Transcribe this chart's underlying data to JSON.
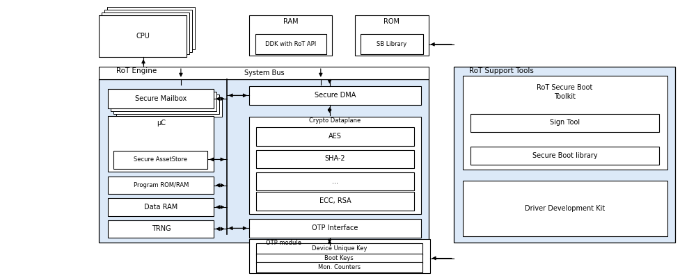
{
  "fig_width": 10.0,
  "fig_height": 4.0,
  "dpi": 100,
  "bg_color": "#ffffff",
  "light_blue": "#dce9f8",
  "box_face": "#ffffff",
  "box_edge": "#000000",
  "fs": 7.0,
  "fs_small": 6.0,
  "fs_label": 7.5,
  "xlim": [
    0,
    10
  ],
  "ylim": [
    0,
    4
  ]
}
